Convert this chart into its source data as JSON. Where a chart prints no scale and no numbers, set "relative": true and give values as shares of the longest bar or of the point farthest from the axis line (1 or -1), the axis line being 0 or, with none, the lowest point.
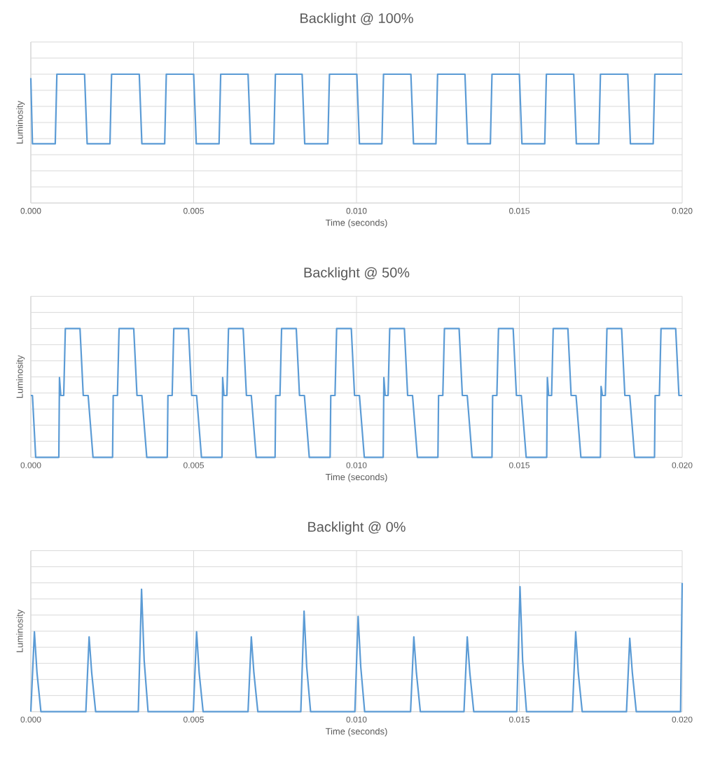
{
  "chart_data": [
    {
      "type": "line",
      "title": "Backlight @ 100%",
      "xlabel": "Time (seconds)",
      "ylabel": "Luminosity",
      "relative": true,
      "grid": true,
      "xlim": [
        0,
        0.02
      ],
      "xticks": [
        {
          "value": 0,
          "label": "0.000"
        },
        {
          "value": 0.005,
          "label": "0.005"
        },
        {
          "value": 0.01,
          "label": "0.010"
        },
        {
          "value": 0.015,
          "label": "0.015"
        },
        {
          "value": 0.02,
          "label": "0.020"
        }
      ],
      "x": [
        0,
        5e-05,
        0.00075,
        0.0008,
        0.00165,
        0.00173,
        0.00243,
        0.00248,
        0.00333,
        0.00341,
        0.00411,
        0.00416,
        0.005,
        0.00508,
        0.00578,
        0.00583,
        0.00667,
        0.00675,
        0.00746,
        0.00751,
        0.00833,
        0.00841,
        0.00912,
        0.00917,
        0.01001,
        0.01009,
        0.01078,
        0.01083,
        0.01167,
        0.01175,
        0.01244,
        0.01249,
        0.01333,
        0.01341,
        0.01411,
        0.01416,
        0.015,
        0.01508,
        0.01578,
        0.01583,
        0.01667,
        0.01675,
        0.01744,
        0.01749,
        0.01833,
        0.01841,
        0.01911,
        0.01916,
        0.02
      ],
      "series": [
        {
          "color": "#5b9bd5",
          "values": [
            0.97,
            0.46,
            0.46,
            1,
            1,
            0.46,
            0.46,
            1,
            1,
            0.46,
            0.46,
            1,
            1,
            0.46,
            0.46,
            1,
            1,
            0.46,
            0.46,
            1,
            1,
            0.46,
            0.46,
            1,
            1,
            0.46,
            0.46,
            1,
            1,
            0.46,
            0.46,
            1,
            1,
            0.46,
            0.46,
            1,
            1,
            0.46,
            0.46,
            1,
            1,
            0.46,
            0.46,
            1,
            1,
            0.46,
            0.46,
            1,
            1
          ]
        }
      ]
    },
    {
      "type": "line",
      "title": "Backlight @ 50%",
      "xlabel": "Time (seconds)",
      "ylabel": "Luminosity",
      "relative": true,
      "grid": true,
      "xlim": [
        0,
        0.02
      ],
      "xticks": [
        {
          "value": 0,
          "label": "0.000"
        },
        {
          "value": 0.005,
          "label": "0.005"
        },
        {
          "value": 0.01,
          "label": "0.010"
        },
        {
          "value": 0.015,
          "label": "0.015"
        },
        {
          "value": 0.02,
          "label": "0.020"
        }
      ],
      "x": [
        0,
        5e-05,
        0.00015,
        0.00086,
        0.00088,
        0.00092,
        0.00101,
        0.00106,
        0.00151,
        0.00161,
        0.00176,
        0.00191,
        0.00251,
        0.00253,
        0.00266,
        0.00271,
        0.00316,
        0.00326,
        0.00341,
        0.00356,
        0.00419,
        0.00421,
        0.00434,
        0.00439,
        0.00484,
        0.00494,
        0.00509,
        0.00524,
        0.00587,
        0.00589,
        0.00593,
        0.00602,
        0.00607,
        0.00652,
        0.00662,
        0.00677,
        0.00692,
        0.0075,
        0.00752,
        0.00765,
        0.0077,
        0.00815,
        0.00825,
        0.0084,
        0.00855,
        0.00919,
        0.00921,
        0.00934,
        0.00939,
        0.00984,
        0.00994,
        0.01009,
        0.01024,
        0.01082,
        0.01084,
        0.01088,
        0.01097,
        0.01102,
        0.01147,
        0.01157,
        0.01172,
        0.01187,
        0.0125,
        0.01252,
        0.01265,
        0.0127,
        0.01315,
        0.01325,
        0.0134,
        0.01355,
        0.01416,
        0.01418,
        0.01431,
        0.01436,
        0.01481,
        0.01491,
        0.01506,
        0.01521,
        0.01584,
        0.01586,
        0.0159,
        0.01599,
        0.01604,
        0.01649,
        0.01659,
        0.01674,
        0.01689,
        0.01749,
        0.01751,
        0.01755,
        0.01764,
        0.01769,
        0.01814,
        0.01824,
        0.01839,
        0.01854,
        0.01915,
        0.01917,
        0.0193,
        0.01935,
        0.0198,
        0.0199,
        0.02
      ],
      "series": [
        {
          "color": "#5b9bd5",
          "values": [
            0.48,
            0.48,
            0,
            0,
            0.62,
            0.48,
            0.48,
            1,
            1,
            0.48,
            0.48,
            0,
            0,
            0.48,
            0.48,
            1,
            1,
            0.48,
            0.48,
            0,
            0,
            0.48,
            0.48,
            1,
            1,
            0.48,
            0.48,
            0,
            0,
            0.62,
            0.48,
            0.48,
            1,
            1,
            0.48,
            0.48,
            0,
            0,
            0.48,
            0.48,
            1,
            1,
            0.48,
            0.48,
            0,
            0,
            0.48,
            0.48,
            1,
            1,
            0.48,
            0.48,
            0,
            0,
            0.62,
            0.48,
            0.48,
            1,
            1,
            0.48,
            0.48,
            0,
            0,
            0.48,
            0.48,
            1,
            1,
            0.48,
            0.48,
            0,
            0,
            0.48,
            0.48,
            1,
            1,
            0.48,
            0.48,
            0,
            0,
            0.62,
            0.48,
            0.48,
            1,
            1,
            0.48,
            0.48,
            0,
            0,
            0.55,
            0.48,
            0.48,
            1,
            1,
            0.48,
            0.48,
            0,
            0,
            0.48,
            0.48,
            1,
            1,
            0.48,
            0.48
          ]
        }
      ]
    },
    {
      "type": "line",
      "title": "Backlight @ 0%",
      "xlabel": "Time (seconds)",
      "ylabel": "Luminosity",
      "relative": true,
      "grid": true,
      "xlim": [
        0,
        0.02
      ],
      "xticks": [
        {
          "value": 0,
          "label": "0.000"
        },
        {
          "value": 0.005,
          "label": "0.005"
        },
        {
          "value": 0.01,
          "label": "0.010"
        },
        {
          "value": 0.015,
          "label": "0.015"
        },
        {
          "value": 0.02,
          "label": "0.020"
        }
      ],
      "x": [
        0,
        0.00011,
        0.00019,
        0.00031,
        0.00169,
        0.00179,
        0.00187,
        0.00199,
        0.0033,
        0.0034,
        0.00348,
        0.0036,
        0.00499,
        0.00509,
        0.00517,
        0.00529,
        0.00667,
        0.00677,
        0.00685,
        0.00697,
        0.00829,
        0.00839,
        0.00847,
        0.00859,
        0.00995,
        0.01005,
        0.01013,
        0.01025,
        0.01166,
        0.01176,
        0.01184,
        0.01196,
        0.0133,
        0.0134,
        0.01348,
        0.0136,
        0.01492,
        0.01502,
        0.0151,
        0.01522,
        0.01663,
        0.01673,
        0.01681,
        0.01693,
        0.01829,
        0.01839,
        0.01847,
        0.01859,
        0.01995,
        0.02
      ],
      "series": [
        {
          "color": "#5b9bd5",
          "values": [
            0,
            0.62,
            0.3,
            0,
            0,
            0.58,
            0.3,
            0,
            0,
            0.95,
            0.4,
            0,
            0,
            0.62,
            0.3,
            0,
            0,
            0.58,
            0.3,
            0,
            0,
            0.78,
            0.35,
            0,
            0,
            0.74,
            0.35,
            0,
            0,
            0.58,
            0.3,
            0,
            0,
            0.58,
            0.3,
            0,
            0,
            0.97,
            0.4,
            0,
            0,
            0.62,
            0.3,
            0,
            0,
            0.57,
            0.3,
            0,
            0,
            1
          ]
        }
      ]
    }
  ]
}
